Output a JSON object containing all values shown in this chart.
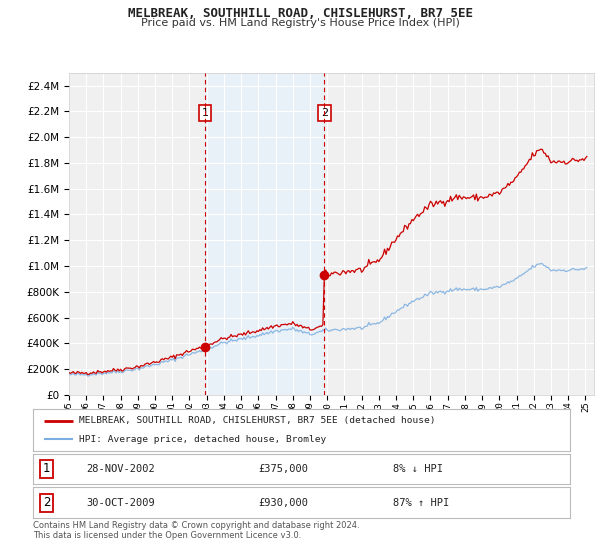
{
  "title": "MELBREAK, SOUTHHILL ROAD, CHISLEHURST, BR7 5EE",
  "subtitle": "Price paid vs. HM Land Registry's House Price Index (HPI)",
  "legend_line1": "MELBREAK, SOUTHILL ROAD, CHISLEHURST, BR7 5EE (detached house)",
  "legend_line2": "HPI: Average price, detached house, Bromley",
  "purchase1_date": 2002.9,
  "purchase1_price": 375000,
  "purchase1_table": "28-NOV-2002",
  "purchase1_amount": "£375,000",
  "purchase1_hpi": "8% ↓ HPI",
  "purchase2_date": 2009.83,
  "purchase2_price": 930000,
  "purchase2_table": "30-OCT-2009",
  "purchase2_amount": "£930,000",
  "purchase2_hpi": "87% ↑ HPI",
  "red_color": "#cc0000",
  "blue_color": "#7aade0",
  "shading_color": "#e8f0f8",
  "chart_bg": "#f0f0f0",
  "fig_bg": "#ffffff",
  "grid_color": "#ffffff",
  "footer": "Contains HM Land Registry data © Crown copyright and database right 2024.\nThis data is licensed under the Open Government Licence v3.0.",
  "ylim": [
    0,
    2500000
  ],
  "xlim_start": 1995,
  "xlim_end": 2025.5
}
